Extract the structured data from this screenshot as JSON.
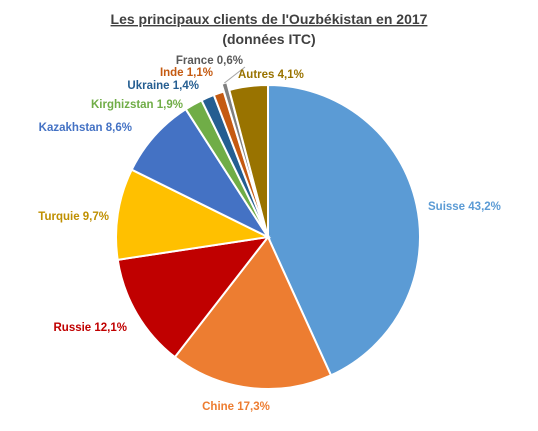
{
  "chart_data": {
    "type": "pie",
    "title": "Les principaux clients de l'Ouzbékistan en 2017",
    "subtitle": "(données ITC)",
    "categories": [
      "Suisse",
      "Chine",
      "Russie",
      "Turquie",
      "Kazakhstan",
      "Kirghizstan",
      "Ukraine",
      "Inde",
      "France",
      "Autres"
    ],
    "values": [
      43.2,
      17.3,
      12.1,
      9.7,
      8.6,
      1.9,
      1.4,
      1.1,
      0.6,
      4.1
    ],
    "labels": [
      "Suisse 43,2%",
      "Chine 17,3%",
      "Russie 12,1%",
      "Turquie 9,7%",
      "Kazakhstan  8,6%",
      "Kirghizstan 1,9%",
      "Ukraine 1,4%",
      "Inde 1,1%",
      "France 0,6%",
      "Autres 4,1%"
    ],
    "colors": [
      "#5b9bd5",
      "#ed7d31",
      "#c00000",
      "#ffc000",
      "#4472c4",
      "#70ad47",
      "#255e91",
      "#c55a11",
      "#7f7f7f",
      "#997300"
    ],
    "label_colors": [
      "#5b9bd5",
      "#ed7d31",
      "#c00000",
      "#bf8f00",
      "#4472c4",
      "#70ad47",
      "#255e91",
      "#c55a11",
      "#595959",
      "#997300"
    ],
    "start_angle_deg": 0,
    "direction": "clockwise",
    "legend": "none"
  }
}
